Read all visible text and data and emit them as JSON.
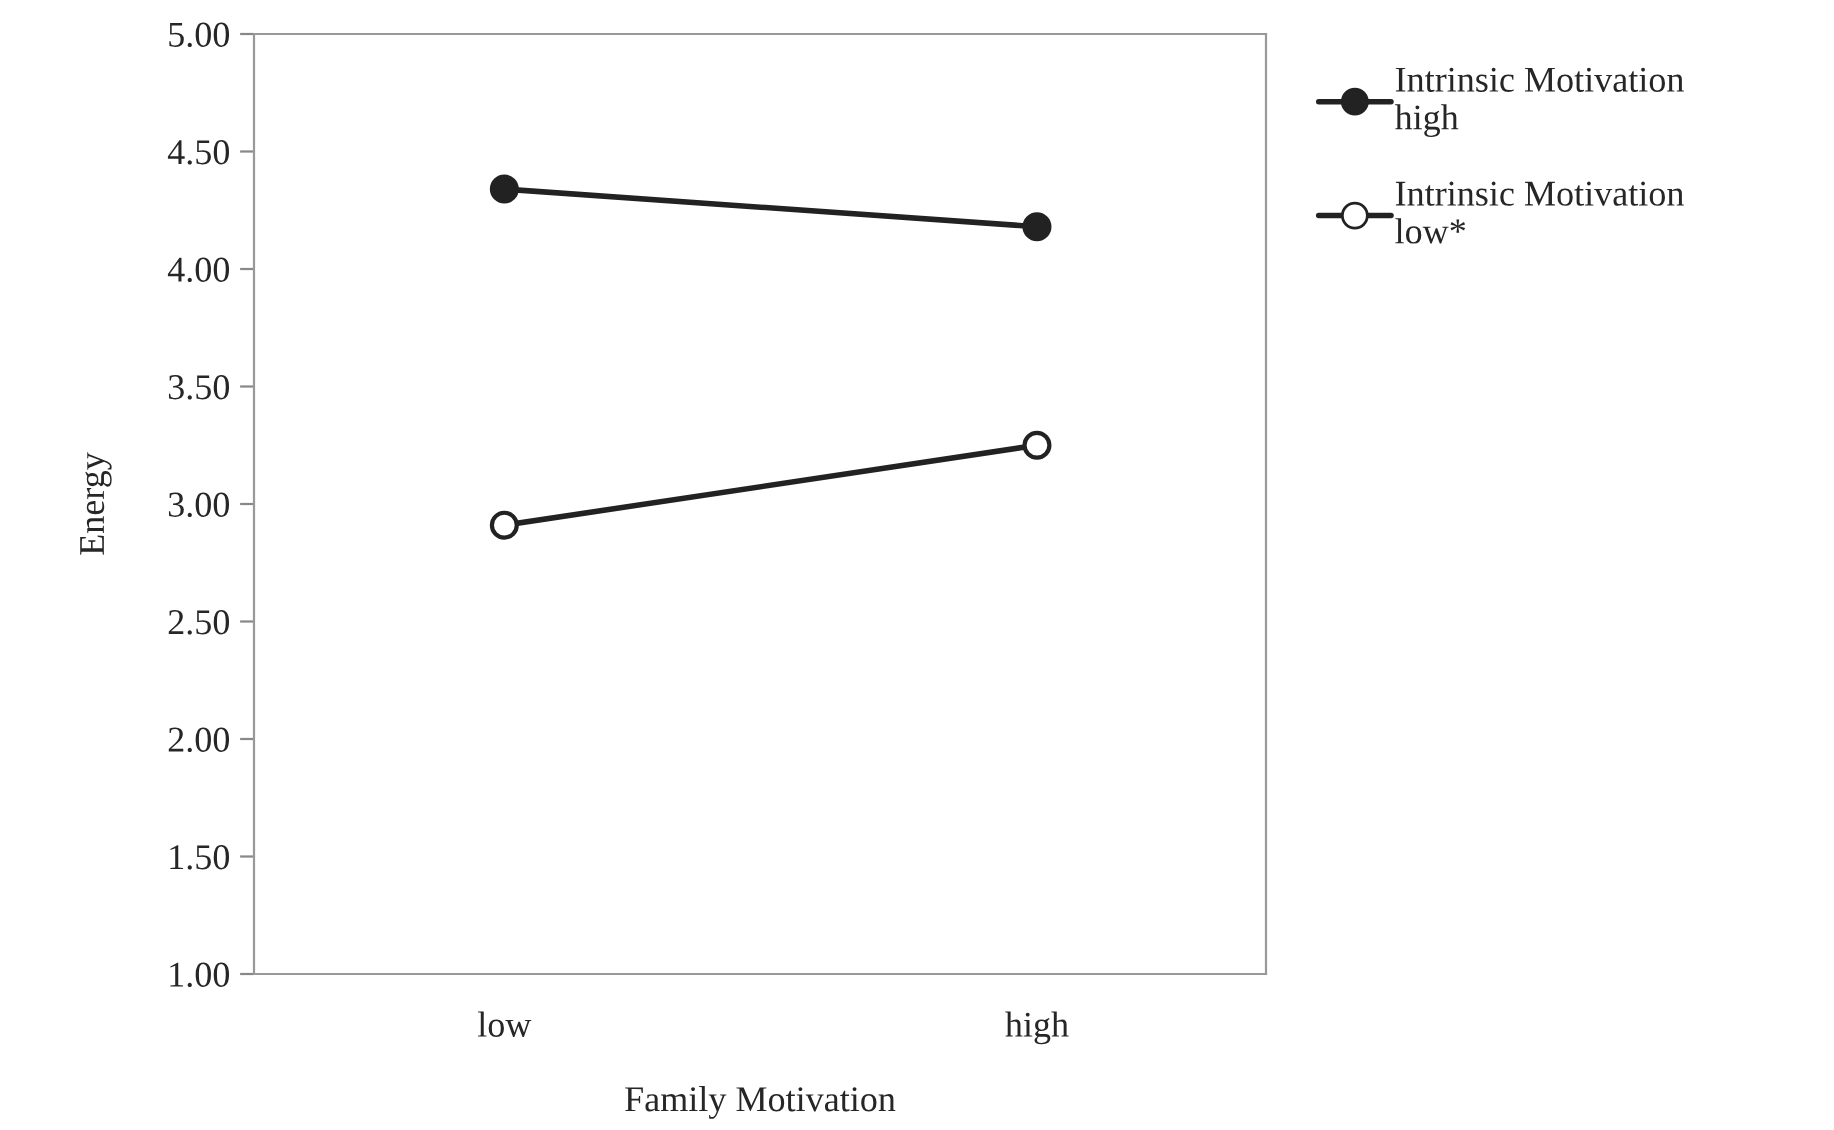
{
  "chart_data": {
    "type": "line",
    "xlabel": "Family Motivation",
    "ylabel": "Energy",
    "categories": [
      "low",
      "high"
    ],
    "series": [
      {
        "name": "Intrinsic Motivation\nhigh",
        "color": "#222222",
        "colors": [
          "#222222",
          "#222222"
        ],
        "values": [
          4.34,
          4.18
        ]
      },
      {
        "name": "Intrinsic Motivation\nlow*",
        "color": "#222222",
        "colors": [
          "#ffffff",
          "#ffffff"
        ],
        "values": [
          2.91,
          3.25
        ]
      }
    ],
    "ylim": [
      1,
      5
    ],
    "yticks": [
      {
        "value": 1,
        "label": "1.00"
      },
      {
        "value": 1.5,
        "label": "1.50"
      },
      {
        "value": 2,
        "label": "2.00"
      },
      {
        "value": 2.5,
        "label": "2.50"
      },
      {
        "value": 3,
        "label": "3.00"
      },
      {
        "value": 3.5,
        "label": "3.50"
      },
      {
        "value": 4,
        "label": "4.00"
      },
      {
        "value": 4.5,
        "label": "4.50"
      },
      {
        "value": 5,
        "label": "5.00"
      }
    ],
    "grid": false,
    "legend": "right",
    "marker": "circle",
    "line_style": "solid"
  }
}
